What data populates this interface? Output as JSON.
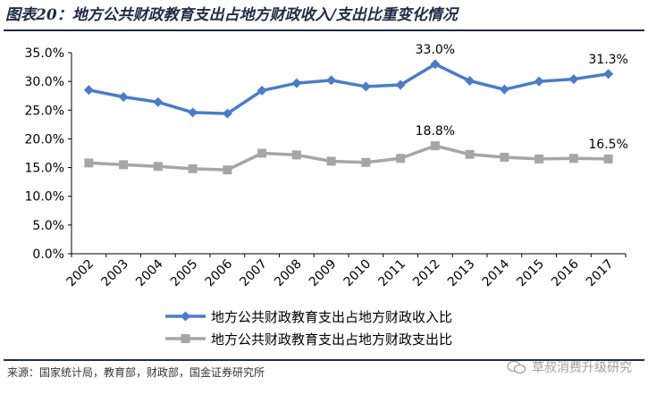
{
  "header": {
    "title": "图表20：地方公共财政教育支出占地方财政收入/支出比重变化情况"
  },
  "footer": {
    "source": "来源：国家统计局，教育部，财政部，国金证券研究所",
    "watermark": "草叔消费升级研究"
  },
  "chart_data": {
    "type": "line",
    "title": "",
    "xlabel": "",
    "ylabel": "",
    "categories": [
      "2002",
      "2003",
      "2004",
      "2005",
      "2006",
      "2007",
      "2008",
      "2009",
      "2010",
      "2011",
      "2012",
      "2013",
      "2014",
      "2015",
      "2016",
      "2017"
    ],
    "yticks": [
      "0.0%",
      "5.0%",
      "10.0%",
      "15.0%",
      "20.0%",
      "25.0%",
      "30.0%",
      "35.0%"
    ],
    "ylim": [
      0,
      35
    ],
    "grid": false,
    "legend_position": "bottom",
    "series": [
      {
        "name": "地方公共财政教育支出占地方财政收入比",
        "color": "#4a7cc7",
        "marker": "diamond",
        "values": [
          28.5,
          27.3,
          26.4,
          24.6,
          24.4,
          28.4,
          29.7,
          30.2,
          29.1,
          29.4,
          33.0,
          30.1,
          28.6,
          30.0,
          30.4,
          31.3
        ],
        "labels": [
          {
            "index": 10,
            "text": "33.0%"
          },
          {
            "index": 15,
            "text": "31.3%"
          }
        ]
      },
      {
        "name": "地方公共财政教育支出占地方财政支出比",
        "color": "#a6a6a6",
        "marker": "square",
        "values": [
          15.8,
          15.5,
          15.2,
          14.8,
          14.6,
          17.5,
          17.2,
          16.1,
          15.9,
          16.6,
          18.8,
          17.3,
          16.8,
          16.5,
          16.6,
          16.5
        ],
        "labels": [
          {
            "index": 10,
            "text": "18.8%"
          },
          {
            "index": 15,
            "text": "16.5%"
          }
        ]
      }
    ]
  }
}
